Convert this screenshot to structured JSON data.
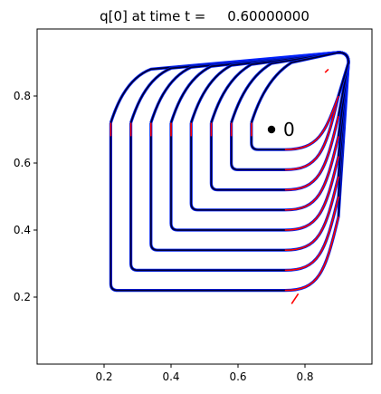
{
  "chart_data": {
    "type": "line",
    "title": "q[0] at time t =     0.60000000",
    "xlabel": "",
    "ylabel": "",
    "xlim": [
      0.0,
      1.0
    ],
    "ylim": [
      0.0,
      1.0
    ],
    "xticks": [
      0.2,
      0.4,
      0.6,
      0.8
    ],
    "xtick_labels": [
      "0.2",
      "0.4",
      "0.6",
      "0.8"
    ],
    "yticks": [
      0.2,
      0.4,
      0.6,
      0.8
    ],
    "ytick_labels": [
      "0.2",
      "0.4",
      "0.6",
      "0.8"
    ],
    "grid": false,
    "contours": [
      {
        "x0": 0.22,
        "y0": 0.22
      },
      {
        "x0": 0.28,
        "y0": 0.28
      },
      {
        "x0": 0.34,
        "y0": 0.34
      },
      {
        "x0": 0.4,
        "y0": 0.4
      },
      {
        "x0": 0.46,
        "y0": 0.46
      },
      {
        "x0": 0.52,
        "y0": 0.52
      },
      {
        "x0": 0.58,
        "y0": 0.58
      },
      {
        "x0": 0.64,
        "y0": 0.64
      }
    ],
    "contour_top": 0.93,
    "contour_right": 0.93,
    "colors": {
      "contour": "#000033",
      "outer": "#0022ff",
      "accent": "#ff0000"
    },
    "marker": {
      "x": 0.7,
      "y": 0.7,
      "label": "0"
    }
  }
}
